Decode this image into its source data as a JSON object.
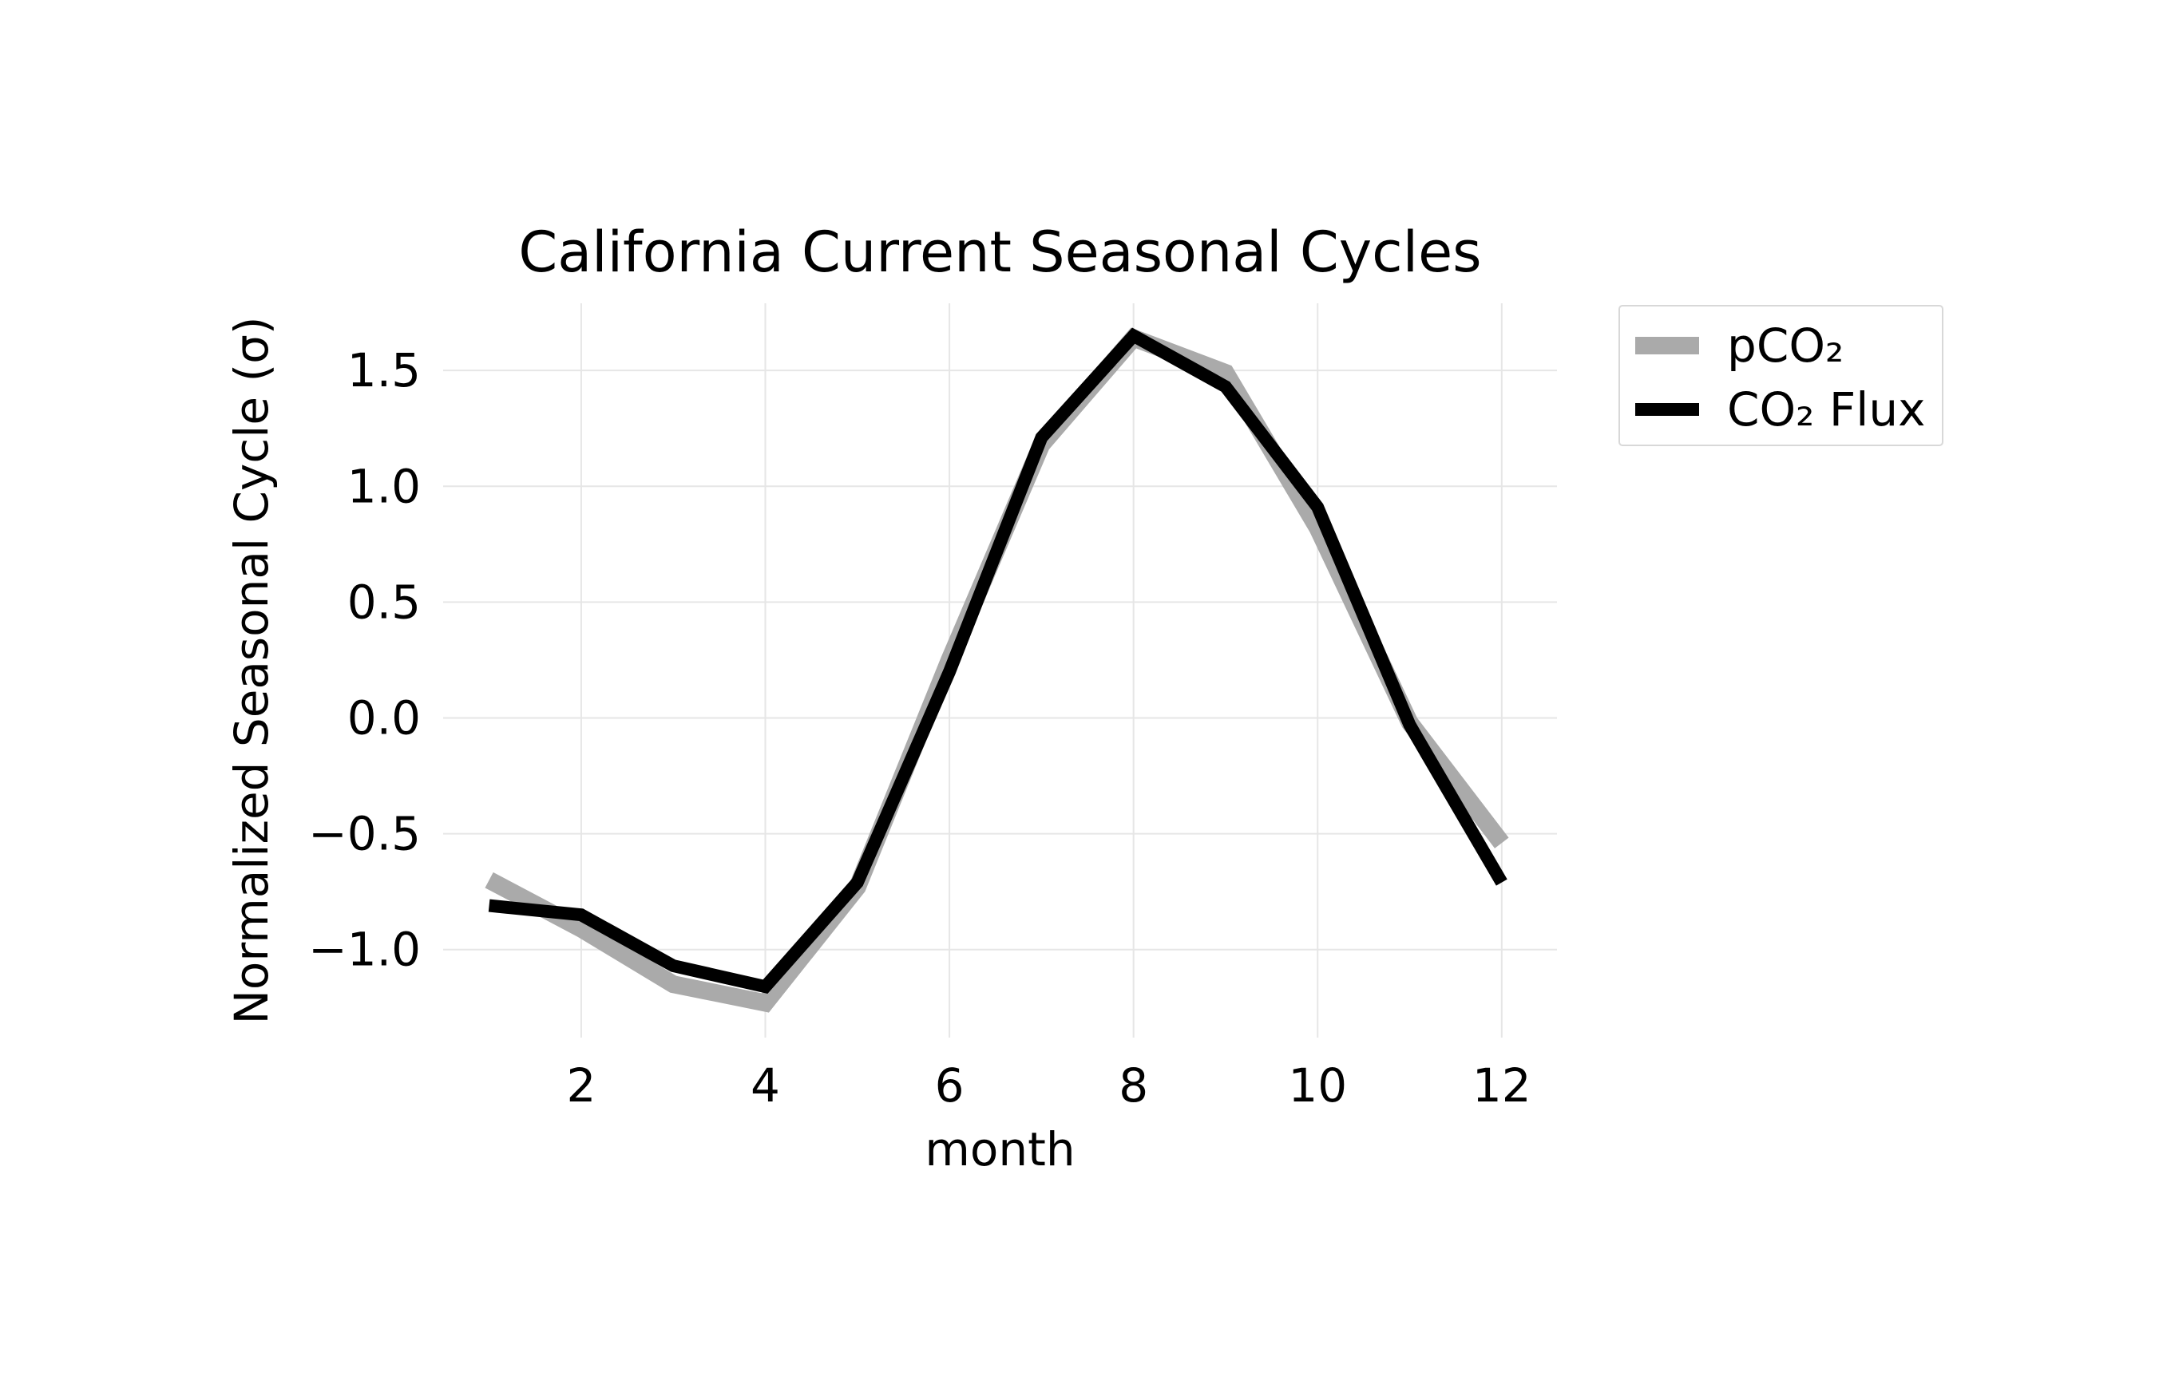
{
  "chart_data": {
    "type": "line",
    "title": "California Current Seasonal Cycles",
    "xlabel": "month",
    "ylabel": "Normalized Seasonal Cycle (σ)",
    "x": [
      1,
      2,
      3,
      4,
      5,
      6,
      7,
      8,
      9,
      10,
      11,
      12
    ],
    "xlim": [
      0.5,
      12.6
    ],
    "ylim": [
      -1.38,
      1.79
    ],
    "xticks": [
      2,
      4,
      6,
      8,
      10,
      12
    ],
    "xtick_labels": [
      "2",
      "4",
      "6",
      "8",
      "10",
      "12"
    ],
    "yticks": [
      1.5,
      1.0,
      0.5,
      0.0,
      -0.5,
      -1.0
    ],
    "ytick_labels": [
      "1.5",
      "1.0",
      "0.5",
      "0.0",
      "−0.5",
      "−1.0"
    ],
    "grid": true,
    "legend_position": "outside-top-right",
    "series": [
      {
        "name": "pCO₂",
        "color": "#aaaaaa",
        "values": [
          -0.7,
          -0.91,
          -1.15,
          -1.23,
          -0.73,
          0.25,
          1.18,
          1.64,
          1.49,
          0.82,
          -0.02,
          -0.54
        ]
      },
      {
        "name": "CO₂ Flux",
        "color": "#000000",
        "values": [
          -0.81,
          -0.85,
          -1.07,
          -1.16,
          -0.71,
          0.2,
          1.21,
          1.65,
          1.43,
          0.91,
          -0.03,
          -0.71
        ]
      }
    ]
  }
}
